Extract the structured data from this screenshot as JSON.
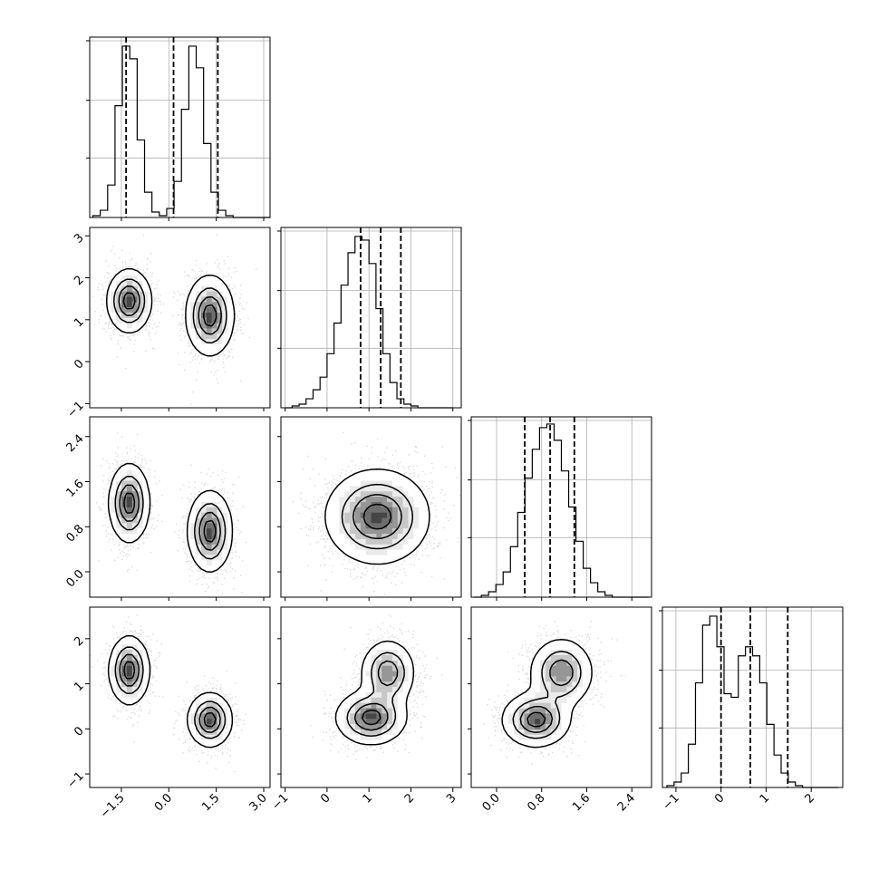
{
  "chart_data": {
    "type": "corner",
    "title": "",
    "parameters": 4,
    "ranges": [
      [
        -2.5,
        3.2
      ],
      [
        -1.1,
        3.2
      ],
      [
        -0.45,
        2.75
      ],
      [
        -1.3,
        2.7
      ]
    ],
    "tick_values": [
      [
        -1.5,
        0.0,
        1.5,
        3.0
      ],
      [
        -1,
        0,
        1,
        2,
        3
      ],
      [
        0.0,
        0.8,
        1.6,
        2.4
      ],
      [
        -1,
        0,
        1,
        2
      ]
    ],
    "tick_labels": [
      [
        "−1.5",
        "0.0",
        "1.5",
        "3.0"
      ],
      [
        "−1",
        "0",
        "1",
        "2",
        "3"
      ],
      [
        "0.0",
        "0.8",
        "1.6",
        "2.4"
      ],
      [
        "−1",
        "0",
        "1",
        "2"
      ]
    ],
    "histograms": [
      {
        "param": 0,
        "bin_edges": [
          -2.4,
          3.2
        ],
        "bins": 24,
        "counts": [
          0.01,
          0.04,
          0.18,
          0.62,
          0.95,
          0.88,
          0.43,
          0.14,
          0.03,
          0.01,
          0.05,
          0.2,
          0.6,
          0.95,
          0.83,
          0.41,
          0.14,
          0.04,
          0.01,
          0,
          0,
          0,
          0,
          0
        ],
        "quantiles": [
          -1.35,
          0.15,
          1.55
        ]
      },
      {
        "param": 1,
        "bin_edges": [
          -1.0,
          3.0
        ],
        "bins": 24,
        "counts": [
          0.0,
          0.01,
          0.02,
          0.05,
          0.1,
          0.17,
          0.3,
          0.47,
          0.68,
          0.86,
          0.95,
          0.93,
          0.8,
          0.55,
          0.3,
          0.14,
          0.05,
          0.02,
          0.01,
          0.0,
          0,
          0,
          0,
          0
        ],
        "quantiles": [
          0.8,
          1.28,
          1.76
        ]
      },
      {
        "param": 2,
        "bin_edges": [
          -0.4,
          2.7
        ],
        "bins": 24,
        "counts": [
          0.0,
          0.01,
          0.03,
          0.07,
          0.14,
          0.28,
          0.47,
          0.66,
          0.82,
          0.94,
          0.96,
          0.87,
          0.7,
          0.5,
          0.31,
          0.16,
          0.08,
          0.03,
          0.01,
          0.0,
          0,
          0,
          0,
          0
        ],
        "quantiles": [
          0.5,
          0.95,
          1.38
        ]
      },
      {
        "param": 3,
        "bin_edges": [
          -1.2,
          2.6
        ],
        "bins": 24,
        "counts": [
          0.01,
          0.03,
          0.08,
          0.24,
          0.58,
          0.9,
          0.95,
          0.78,
          0.52,
          0.5,
          0.73,
          0.78,
          0.73,
          0.58,
          0.35,
          0.18,
          0.08,
          0.03,
          0.01,
          0.0,
          0,
          0,
          0,
          0
        ],
        "quantiles": [
          0.0,
          0.65,
          1.48
        ]
      }
    ],
    "pair_modes": [
      {
        "x_param": 0,
        "y_param": 1,
        "modes": [
          {
            "mean": [
              -1.25,
              1.45
            ],
            "sd": [
              0.35,
              0.38
            ],
            "weight": 1.0
          },
          {
            "mean": [
              1.3,
              1.1
            ],
            "sd": [
              0.38,
              0.48
            ],
            "weight": 1.0
          }
        ]
      },
      {
        "x_param": 0,
        "y_param": 2,
        "modes": [
          {
            "mean": [
              -1.25,
              1.22
            ],
            "sd": [
              0.32,
              0.35
            ],
            "weight": 1.0
          },
          {
            "mean": [
              1.3,
              0.72
            ],
            "sd": [
              0.35,
              0.36
            ],
            "weight": 1.0
          }
        ]
      },
      {
        "x_param": 1,
        "y_param": 2,
        "modes": [
          {
            "mean": [
              1.2,
              0.98
            ],
            "sd": [
              0.62,
              0.42
            ],
            "weight": 1.0
          }
        ]
      },
      {
        "x_param": 0,
        "y_param": 3,
        "modes": [
          {
            "mean": [
              -1.25,
              1.3
            ],
            "sd": [
              0.32,
              0.38
            ],
            "weight": 1.0
          },
          {
            "mean": [
              1.3,
              0.2
            ],
            "sd": [
              0.35,
              0.3
            ],
            "weight": 1.0
          }
        ]
      },
      {
        "x_param": 1,
        "y_param": 3,
        "modes": [
          {
            "mean": [
              1.05,
              0.25
            ],
            "sd": [
              0.42,
              0.3
            ],
            "weight": 1.0
          },
          {
            "mean": [
              1.45,
              1.25
            ],
            "sd": [
              0.32,
              0.36
            ],
            "weight": 0.85
          }
        ]
      },
      {
        "x_param": 2,
        "y_param": 3,
        "modes": [
          {
            "mean": [
              0.7,
              0.2
            ],
            "sd": [
              0.3,
              0.3
            ],
            "weight": 1.0
          },
          {
            "mean": [
              1.15,
              1.25
            ],
            "sd": [
              0.28,
              0.38
            ],
            "weight": 0.85
          }
        ]
      }
    ]
  }
}
